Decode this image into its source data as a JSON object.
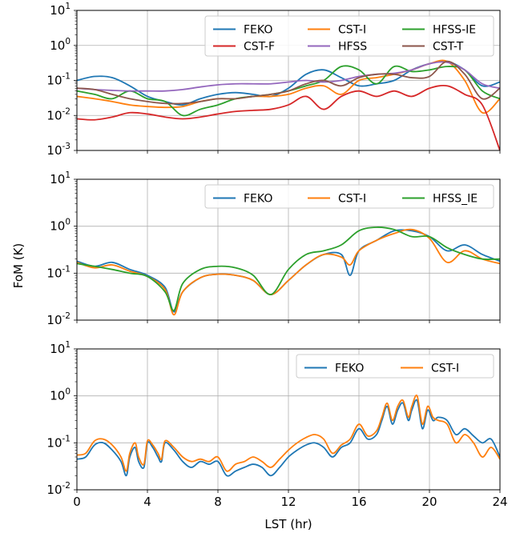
{
  "figure": {
    "xlabel": "LST (hr)",
    "ylabel": "FoM (K)"
  },
  "chart_data": [
    {
      "type": "line",
      "scale_y": "log",
      "xlim": [
        0,
        24
      ],
      "ylim": [
        0.001,
        10
      ],
      "xticks": [
        0,
        4,
        8,
        12,
        16,
        20,
        24
      ],
      "yticks": [
        {
          "value": 0.001,
          "base": "10",
          "exp": "-3"
        },
        {
          "value": 0.01,
          "base": "10",
          "exp": "-2"
        },
        {
          "value": 0.1,
          "base": "10",
          "exp": "-1"
        },
        {
          "value": 1,
          "base": "10",
          "exp": "0"
        },
        {
          "value": 10,
          "base": "10",
          "exp": "1"
        }
      ],
      "grid": true,
      "legend": {
        "placement": "upper-right",
        "columns": 3
      },
      "series": [
        {
          "name": "FEKO",
          "color": "#1f77b4",
          "x": [
            0,
            1,
            2,
            3,
            4,
            5,
            6,
            7,
            8,
            9,
            10,
            11,
            12,
            13,
            14,
            15,
            16,
            17,
            18,
            19,
            20,
            21,
            22,
            23,
            24
          ],
          "values": [
            0.1,
            0.13,
            0.12,
            0.07,
            0.035,
            0.025,
            0.02,
            0.03,
            0.04,
            0.045,
            0.04,
            0.035,
            0.06,
            0.15,
            0.2,
            0.12,
            0.07,
            0.08,
            0.1,
            0.2,
            0.3,
            0.35,
            0.2,
            0.07,
            0.09
          ]
        },
        {
          "name": "CST-I",
          "color": "#ff7f0e",
          "x": [
            0,
            1,
            2,
            3,
            4,
            5,
            6,
            7,
            8,
            9,
            10,
            11,
            12,
            13,
            14,
            15,
            16,
            17,
            18,
            19,
            20,
            21,
            22,
            23,
            24
          ],
          "values": [
            0.035,
            0.03,
            0.025,
            0.02,
            0.018,
            0.017,
            0.018,
            0.025,
            0.03,
            0.03,
            0.035,
            0.035,
            0.04,
            0.06,
            0.07,
            0.04,
            0.1,
            0.12,
            0.15,
            0.2,
            0.3,
            0.35,
            0.1,
            0.012,
            0.03
          ]
        },
        {
          "name": "HFSS-IE",
          "color": "#2ca02c",
          "x": [
            0,
            1,
            2,
            3,
            4,
            5,
            6,
            7,
            8,
            9,
            10,
            11,
            12,
            13,
            14,
            15,
            16,
            17,
            18,
            19,
            20,
            21,
            22,
            23,
            24
          ],
          "values": [
            0.05,
            0.04,
            0.03,
            0.05,
            0.03,
            0.025,
            0.01,
            0.015,
            0.02,
            0.03,
            0.035,
            0.04,
            0.05,
            0.07,
            0.1,
            0.25,
            0.2,
            0.08,
            0.25,
            0.18,
            0.2,
            0.25,
            0.2,
            0.05,
            0.03
          ]
        },
        {
          "name": "CST-F",
          "color": "#d62728",
          "x": [
            0,
            1,
            2,
            3,
            4,
            5,
            6,
            7,
            8,
            9,
            10,
            11,
            12,
            13,
            14,
            15,
            16,
            17,
            18,
            19,
            20,
            21,
            22,
            23,
            24
          ],
          "values": [
            0.008,
            0.0075,
            0.009,
            0.012,
            0.011,
            0.009,
            0.008,
            0.009,
            0.011,
            0.013,
            0.014,
            0.015,
            0.02,
            0.035,
            0.015,
            0.035,
            0.05,
            0.035,
            0.05,
            0.035,
            0.06,
            0.07,
            0.04,
            0.02,
            0.001
          ]
        },
        {
          "name": "HFSS",
          "color": "#9467bd",
          "x": [
            0,
            1,
            2,
            3,
            4,
            5,
            6,
            7,
            8,
            9,
            10,
            11,
            12,
            13,
            14,
            15,
            16,
            17,
            18,
            19,
            20,
            21,
            22,
            23,
            24
          ],
          "values": [
            0.06,
            0.055,
            0.052,
            0.05,
            0.05,
            0.05,
            0.055,
            0.065,
            0.075,
            0.08,
            0.08,
            0.08,
            0.09,
            0.1,
            0.09,
            0.1,
            0.13,
            0.15,
            0.16,
            0.2,
            0.3,
            0.33,
            0.2,
            0.08,
            0.06
          ]
        },
        {
          "name": "CST-T",
          "color": "#8c564b",
          "x": [
            0,
            1,
            2,
            3,
            4,
            5,
            6,
            7,
            8,
            9,
            10,
            11,
            12,
            13,
            14,
            15,
            16,
            17,
            18,
            19,
            20,
            21,
            22,
            23,
            24
          ],
          "values": [
            0.06,
            0.055,
            0.04,
            0.03,
            0.025,
            0.022,
            0.022,
            0.025,
            0.03,
            0.03,
            0.035,
            0.04,
            0.05,
            0.08,
            0.1,
            0.07,
            0.12,
            0.15,
            0.15,
            0.12,
            0.13,
            0.35,
            0.15,
            0.03,
            0.06
          ]
        }
      ]
    },
    {
      "type": "line",
      "scale_y": "log",
      "xlim": [
        0,
        24
      ],
      "ylim": [
        0.01,
        10
      ],
      "xticks": [
        0,
        4,
        8,
        12,
        16,
        20,
        24
      ],
      "yticks": [
        {
          "value": 0.01,
          "base": "10",
          "exp": "-2"
        },
        {
          "value": 0.1,
          "base": "10",
          "exp": "-1"
        },
        {
          "value": 1,
          "base": "10",
          "exp": "0"
        },
        {
          "value": 10,
          "base": "10",
          "exp": "1"
        }
      ],
      "grid": true,
      "legend": {
        "placement": "upper-right",
        "columns": 3
      },
      "series": [
        {
          "name": "FEKO",
          "color": "#1f77b4",
          "x": [
            0,
            1,
            2,
            3,
            4,
            5,
            5.5,
            6,
            7,
            8,
            9,
            10,
            11,
            12,
            13,
            14,
            15,
            15.5,
            16,
            17,
            18,
            19,
            20,
            21,
            22,
            23,
            24
          ],
          "values": [
            0.18,
            0.14,
            0.17,
            0.12,
            0.09,
            0.05,
            0.015,
            0.04,
            0.08,
            0.095,
            0.09,
            0.07,
            0.035,
            0.07,
            0.15,
            0.25,
            0.25,
            0.09,
            0.3,
            0.5,
            0.8,
            0.8,
            0.6,
            0.3,
            0.4,
            0.25,
            0.18
          ]
        },
        {
          "name": "CST-I",
          "color": "#ff7f0e",
          "x": [
            0,
            1,
            2,
            3,
            4,
            5,
            5.5,
            6,
            7,
            8,
            9,
            10,
            11,
            12,
            13,
            14,
            15,
            15.5,
            16,
            17,
            18,
            19,
            20,
            21,
            22,
            23,
            24
          ],
          "values": [
            0.17,
            0.13,
            0.15,
            0.11,
            0.085,
            0.045,
            0.013,
            0.04,
            0.08,
            0.095,
            0.09,
            0.07,
            0.035,
            0.07,
            0.15,
            0.25,
            0.22,
            0.15,
            0.3,
            0.5,
            0.7,
            0.85,
            0.55,
            0.17,
            0.3,
            0.2,
            0.16
          ]
        },
        {
          "name": "HFSS_IE",
          "color": "#2ca02c",
          "x": [
            0,
            1,
            2,
            3,
            4,
            5,
            5.5,
            6,
            7,
            8,
            9,
            10,
            11,
            12,
            13,
            14,
            15,
            16,
            17,
            18,
            19,
            20,
            21,
            22,
            23,
            24
          ],
          "values": [
            0.16,
            0.14,
            0.12,
            0.1,
            0.085,
            0.04,
            0.016,
            0.06,
            0.12,
            0.14,
            0.13,
            0.09,
            0.035,
            0.12,
            0.25,
            0.3,
            0.4,
            0.8,
            0.95,
            0.85,
            0.6,
            0.6,
            0.35,
            0.25,
            0.2,
            0.2
          ]
        }
      ]
    },
    {
      "type": "line",
      "scale_y": "log",
      "xlim": [
        0,
        24
      ],
      "ylim": [
        0.01,
        10
      ],
      "xticks": [
        0,
        4,
        8,
        12,
        16,
        20,
        24
      ],
      "yticks": [
        {
          "value": 0.01,
          "base": "10",
          "exp": "-2"
        },
        {
          "value": 0.1,
          "base": "10",
          "exp": "-1"
        },
        {
          "value": 1,
          "base": "10",
          "exp": "0"
        },
        {
          "value": 10,
          "base": "10",
          "exp": "1"
        }
      ],
      "grid": true,
      "legend": {
        "placement": "upper-right",
        "columns": 2
      },
      "series": [
        {
          "name": "FEKO",
          "color": "#1f77b4",
          "x": [
            0,
            0.5,
            1,
            1.5,
            2,
            2.5,
            2.8,
            3,
            3.3,
            3.5,
            3.8,
            4,
            4.3,
            4.6,
            4.8,
            5,
            5.5,
            6,
            6.5,
            7,
            7.5,
            8,
            8.5,
            9,
            9.5,
            10,
            10.5,
            11,
            11.5,
            12,
            12.5,
            13,
            13.5,
            14,
            14.5,
            15,
            15.5,
            16,
            16.5,
            17,
            17.3,
            17.6,
            17.9,
            18.2,
            18.5,
            18.8,
            19,
            19.3,
            19.6,
            19.9,
            20.2,
            20.5,
            21,
            21.5,
            22,
            22.5,
            23,
            23.5,
            24
          ],
          "values": [
            0.045,
            0.05,
            0.09,
            0.1,
            0.07,
            0.04,
            0.02,
            0.05,
            0.08,
            0.04,
            0.03,
            0.1,
            0.08,
            0.05,
            0.04,
            0.1,
            0.07,
            0.04,
            0.03,
            0.04,
            0.035,
            0.04,
            0.02,
            0.025,
            0.03,
            0.035,
            0.03,
            0.02,
            0.03,
            0.05,
            0.07,
            0.09,
            0.1,
            0.08,
            0.05,
            0.08,
            0.1,
            0.2,
            0.12,
            0.15,
            0.3,
            0.6,
            0.25,
            0.5,
            0.7,
            0.3,
            0.5,
            0.8,
            0.2,
            0.5,
            0.3,
            0.35,
            0.3,
            0.15,
            0.2,
            0.14,
            0.1,
            0.12,
            0.05
          ]
        },
        {
          "name": "CST-I",
          "color": "#ff7f0e",
          "x": [
            0,
            0.5,
            1,
            1.5,
            2,
            2.5,
            2.8,
            3,
            3.3,
            3.5,
            3.8,
            4,
            4.3,
            4.6,
            4.8,
            5,
            5.5,
            6,
            6.5,
            7,
            7.5,
            8,
            8.5,
            9,
            9.5,
            10,
            10.5,
            11,
            11.5,
            12,
            12.5,
            13,
            13.5,
            14,
            14.5,
            15,
            15.5,
            16,
            16.5,
            17,
            17.3,
            17.6,
            17.9,
            18.2,
            18.5,
            18.8,
            19,
            19.3,
            19.6,
            19.9,
            20.2,
            20.5,
            21,
            21.5,
            22,
            22.5,
            23,
            23.5,
            24
          ],
          "values": [
            0.055,
            0.06,
            0.11,
            0.12,
            0.09,
            0.05,
            0.025,
            0.06,
            0.1,
            0.05,
            0.035,
            0.11,
            0.09,
            0.06,
            0.045,
            0.11,
            0.08,
            0.05,
            0.04,
            0.045,
            0.04,
            0.05,
            0.025,
            0.035,
            0.04,
            0.05,
            0.04,
            0.03,
            0.045,
            0.07,
            0.1,
            0.13,
            0.15,
            0.12,
            0.06,
            0.09,
            0.12,
            0.25,
            0.14,
            0.18,
            0.35,
            0.7,
            0.3,
            0.6,
            0.8,
            0.35,
            0.6,
            1.0,
            0.25,
            0.6,
            0.35,
            0.3,
            0.25,
            0.1,
            0.15,
            0.1,
            0.05,
            0.08,
            0.045
          ]
        }
      ]
    }
  ]
}
